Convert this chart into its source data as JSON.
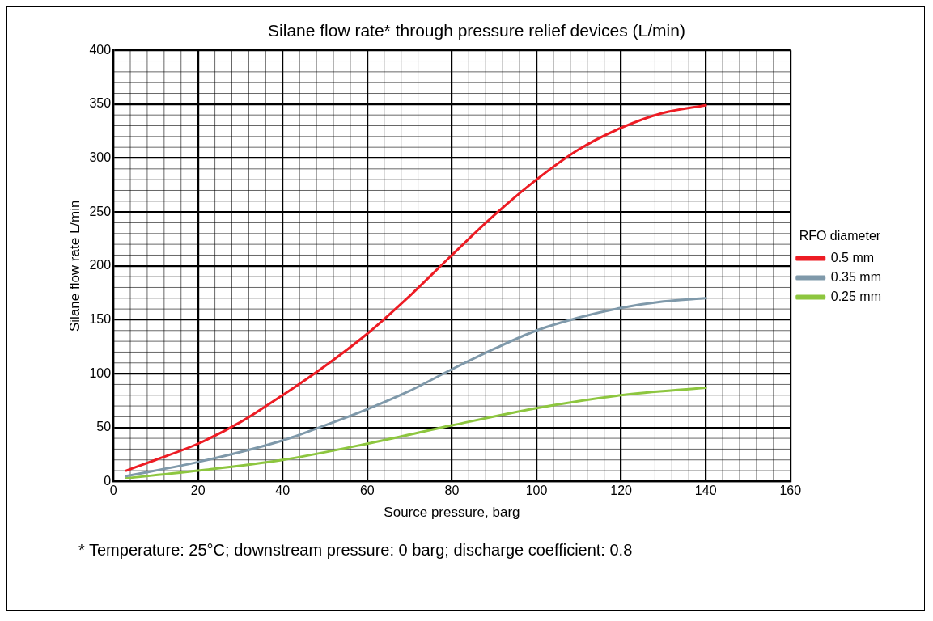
{
  "chart_data": {
    "type": "line",
    "title": "Silane flow rate* through pressure relief devices (L/min)",
    "xlabel": "Source pressure, barg",
    "ylabel": "Silane flow rate L/min",
    "legend_title": "RFO diameter",
    "legend": "right",
    "grid": true,
    "marker": "none",
    "line_style": "solid",
    "xlim": [
      0,
      160
    ],
    "xticks": [
      0,
      20,
      40,
      60,
      80,
      100,
      120,
      140,
      160
    ],
    "ylim": [
      0,
      400
    ],
    "yticks": [
      0,
      50,
      100,
      150,
      200,
      250,
      300,
      350,
      400
    ],
    "series": [
      {
        "name": "0.5 mm",
        "color": "#ed1c24",
        "x": [
          3,
          10,
          20,
          30,
          40,
          50,
          60,
          70,
          80,
          90,
          100,
          110,
          120,
          130,
          140
        ],
        "values": [
          10,
          20,
          35,
          55,
          80,
          107,
          137,
          172,
          210,
          247,
          280,
          308,
          328,
          342,
          349
        ]
      },
      {
        "name": "0.35 mm",
        "color": "#7f99aa",
        "x": [
          3,
          20,
          40,
          50,
          60,
          70,
          80,
          90,
          100,
          110,
          120,
          130,
          140
        ],
        "values": [
          5,
          18,
          38,
          52,
          67,
          84,
          104,
          123,
          140,
          152,
          161,
          167,
          170
        ]
      },
      {
        "name": "0.25 mm",
        "color": "#8dc63f",
        "x": [
          3,
          20,
          40,
          60,
          80,
          100,
          120,
          140
        ],
        "values": [
          3,
          10,
          20,
          35,
          52,
          68,
          80,
          87
        ]
      }
    ],
    "annotations": [
      "* Temperature: 25°C; downstream pressure: 0 barg; discharge coefficient: 0.8"
    ]
  }
}
